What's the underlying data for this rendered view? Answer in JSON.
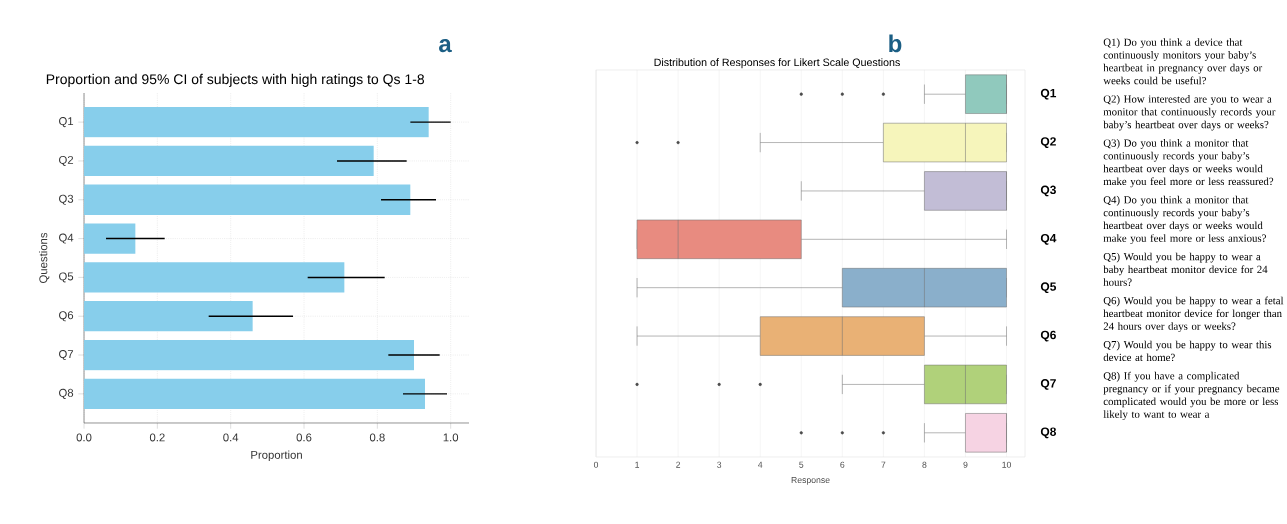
{
  "chart_data": [
    {
      "type": "bar",
      "orientation": "horizontal",
      "title": "Proportion and 95% CI of subjects with high ratings to Qs 1-8",
      "xlabel": "Proportion",
      "ylabel": "Questions",
      "annotations": [
        "a"
      ],
      "categories": [
        "Q1",
        "Q2",
        "Q3",
        "Q4",
        "Q5",
        "Q6",
        "Q7",
        "Q8"
      ],
      "values": [
        0.94,
        0.79,
        0.89,
        0.14,
        0.71,
        0.46,
        0.9,
        0.93
      ],
      "errors": [
        [
          0.89,
          1.0
        ],
        [
          0.69,
          0.88
        ],
        [
          0.81,
          0.96
        ],
        [
          0.06,
          0.22
        ],
        [
          0.61,
          0.82
        ],
        [
          0.34,
          0.57
        ],
        [
          0.83,
          0.97
        ],
        [
          0.87,
          0.99
        ]
      ],
      "color": "#87ceeb",
      "xlim": [
        0,
        1.05
      ],
      "xticks": [
        {
          "value": 0,
          "label": "0.0"
        },
        0.2,
        0.4,
        0.6,
        0.8,
        {
          "value": 1,
          "label": "1.0"
        }
      ],
      "grid": true
    },
    {
      "type": "box",
      "orientation": "horizontal",
      "title": "Distribution of Responses for Likert Scale Questions",
      "xlabel": "Response",
      "annotations": [
        "b"
      ],
      "categories": [
        "Q1",
        "Q2",
        "Q3",
        "Q4",
        "Q5",
        "Q6",
        "Q7",
        "Q8"
      ],
      "boxes": [
        {
          "low": 8,
          "q1": 9,
          "median": 10,
          "q3": 10,
          "high": 10,
          "outliers": [
            5,
            6,
            7
          ]
        },
        {
          "low": 4,
          "q1": 7,
          "median": 9,
          "q3": 10,
          "high": 10,
          "outliers": [
            1,
            2
          ]
        },
        {
          "low": 5,
          "q1": 8,
          "median": 10,
          "q3": 10,
          "high": 10
        },
        {
          "low": 1,
          "q1": 1,
          "median": 2,
          "q3": 5,
          "high": 10
        },
        {
          "low": 1,
          "q1": 6,
          "median": 8,
          "q3": 10,
          "high": 10
        },
        {
          "low": 1,
          "q1": 4,
          "median": 6,
          "q3": 8,
          "high": 10
        },
        {
          "low": 6,
          "q1": 8,
          "median": 9,
          "q3": 10,
          "high": 10,
          "outliers": [
            1,
            3,
            4
          ]
        },
        {
          "low": 8,
          "q1": 9,
          "median": 10,
          "q3": 10,
          "high": 10,
          "outliers": [
            5,
            6,
            7
          ]
        }
      ],
      "colors": [
        "#90c9bd",
        "#f6f5bb",
        "#c2bdd6",
        "#e88b80",
        "#8aafcb",
        "#e9b175",
        "#b0d17a",
        "#f6d3e3"
      ],
      "xlim": [
        0,
        10.45
      ],
      "xticks": [
        0,
        1,
        2,
        3,
        4,
        5,
        6,
        7,
        8,
        9,
        10
      ],
      "grid": "x"
    },
    {
      "type": "other",
      "annotations": [
        "Q1) Do you think a device that continuously monitors your baby’s heartbeat in pregnancy over days or weeks could be useful?",
        "Q2) How interested are you to wear a monitor that continuously records your baby’s heartbeat over days or weeks?",
        "Q3) Do you think a monitor that continuously records your baby’s heartbeat over days or weeks would make you feel more or less reassured?",
        "Q4) Do you think a monitor that continuously records your baby’s heartbeat over days or weeks would make you feel more or less anxious?",
        "Q5) Would you be happy to wear a baby heartbeat monitor device for 24 hours?",
        "Q6) Would you be happy to wear a fetal heartbeat monitor device for longer than 24 hours over days or weeks?",
        "Q7) Would you be happy to wear this device at home?",
        "Q8) If you have a complicated pregnancy or if your pregnancy became complicated would you be more or less likely to want to wear a"
      ]
    }
  ]
}
